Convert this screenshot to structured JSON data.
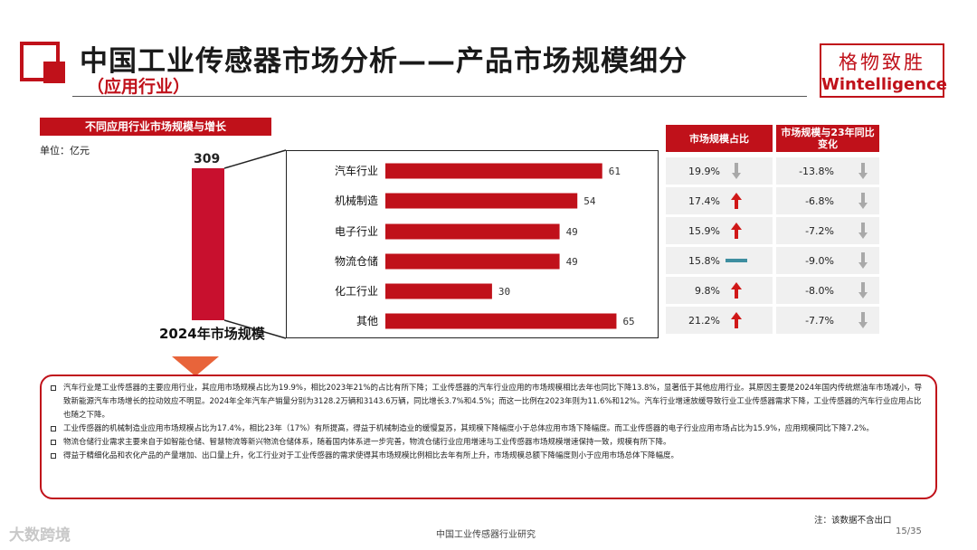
{
  "header": {
    "title": "中国工业传感器市场分析——产品市场规模细分",
    "subtitle": "（应用行业）",
    "brand_cn": "格物致胜",
    "brand_en": "Wintelligence"
  },
  "chart_data": {
    "type": "bar",
    "title": "不同应用行业市场规模与增长",
    "unit": "单位：亿元",
    "total": {
      "label": "2024年市场规模",
      "value": 309
    },
    "categories": [
      "汽车行业",
      "机械制造",
      "电子行业",
      "物流仓储",
      "化工行业",
      "其他"
    ],
    "values": [
      61,
      54,
      49,
      49,
      30,
      65
    ],
    "xlim": [
      0,
      80
    ],
    "bar_color": "#c0111a"
  },
  "table": {
    "headers": [
      "市场规模占比",
      "市场规模与23年同比变化"
    ],
    "rows": [
      {
        "share": "19.9%",
        "share_icon": "arrow-down-gray",
        "change": "-13.8%",
        "change_icon": "arrow-down-gray"
      },
      {
        "share": "17.4%",
        "share_icon": "arrow-up-red",
        "change": "-6.8%",
        "change_icon": "arrow-down-gray"
      },
      {
        "share": "15.9%",
        "share_icon": "arrow-up-red",
        "change": "-7.2%",
        "change_icon": "arrow-down-gray"
      },
      {
        "share": "15.8%",
        "share_icon": "flat-teal",
        "change": "-9.0%",
        "change_icon": "arrow-down-gray"
      },
      {
        "share": "9.8%",
        "share_icon": "arrow-up-red",
        "change": "-8.0%",
        "change_icon": "arrow-down-gray"
      },
      {
        "share": "21.2%",
        "share_icon": "arrow-up-red",
        "change": "-7.7%",
        "change_icon": "arrow-down-gray"
      }
    ]
  },
  "notes": [
    "汽车行业是工业传感器的主要应用行业，其应用市场规模占比为19.9%，相比2023年21%的占比有所下降；工业传感器的汽车行业应用的市场规模相比去年也同比下降13.8%，显著低于其他应用行业。其原因主要是2024年国内传统燃油车市场减小，导致新能源汽车市场增长的拉动效应不明显。2024年全年汽车产销量分别为3128.2万辆和3143.6万辆，同比增长3.7%和4.5%；而这一比例在2023年则为11.6%和12%。汽车行业增速放缓导致行业工业传感器需求下降，工业传感器的汽车行业应用占比也随之下降。",
    "工业传感器的机械制造业应用市场规模占比为17.4%，相比23年（17%）有所提高，得益于机械制造业的缓慢复苏，其规模下降幅度小于总体应用市场下降幅度。而工业传感器的电子行业应用市场占比为15.9%，应用规模同比下降7.2%。",
    "物流仓储行业需求主要来自于如智能仓储、智慧物流等新兴物流仓储体系，随着国内体系进一步完善，物流仓储行业应用增速与工业传感器市场规模增速保持一致，规模有所下降。",
    "得益于精细化品和农化产品的产量增加、出口量上升，化工行业对于工业传感器的需求使得其市场规模比例相比去年有所上升，市场规模总额下降幅度则小于应用市场总体下降幅度。"
  ],
  "footer": {
    "center": "中国工业传感器行业研究",
    "note": "注：该数据不含出口",
    "page": "15/35",
    "source": "大数跨境"
  }
}
